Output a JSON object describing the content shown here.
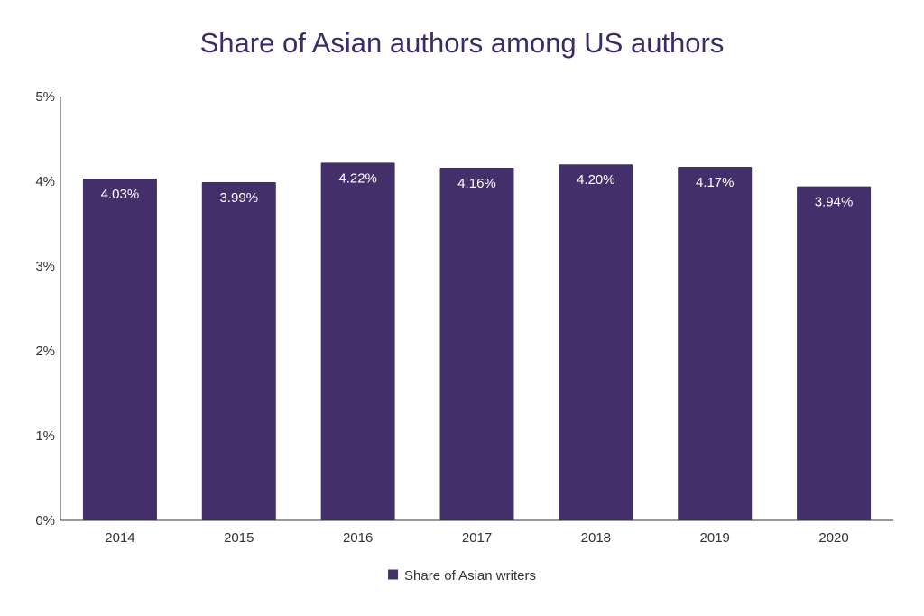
{
  "chart_data": {
    "type": "bar",
    "title": "Share of Asian authors among US authors",
    "xlabel": "",
    "ylabel": "",
    "categories": [
      "2014",
      "2015",
      "2016",
      "2017",
      "2018",
      "2019",
      "2020"
    ],
    "series": [
      {
        "name": "Share of Asian writers",
        "values": [
          4.03,
          3.99,
          4.22,
          4.16,
          4.2,
          4.17,
          3.94
        ],
        "data_labels": [
          "4.03%",
          "3.99%",
          "4.22%",
          "4.16%",
          "4.20%",
          "4.17%",
          "3.94%"
        ],
        "color": "#43306b"
      }
    ],
    "ylim": [
      0,
      5
    ],
    "yticks": [
      0,
      1,
      2,
      3,
      4,
      5
    ],
    "ytick_labels": [
      "0%",
      "1%",
      "2%",
      "3%",
      "4%",
      "5%"
    ],
    "grid": false,
    "legend_position": "bottom-center"
  },
  "colors": {
    "title": "#3d2b69",
    "bar": "#43306b",
    "axis": "#333333",
    "tick_text": "#333333",
    "data_label": "#ffffff"
  }
}
